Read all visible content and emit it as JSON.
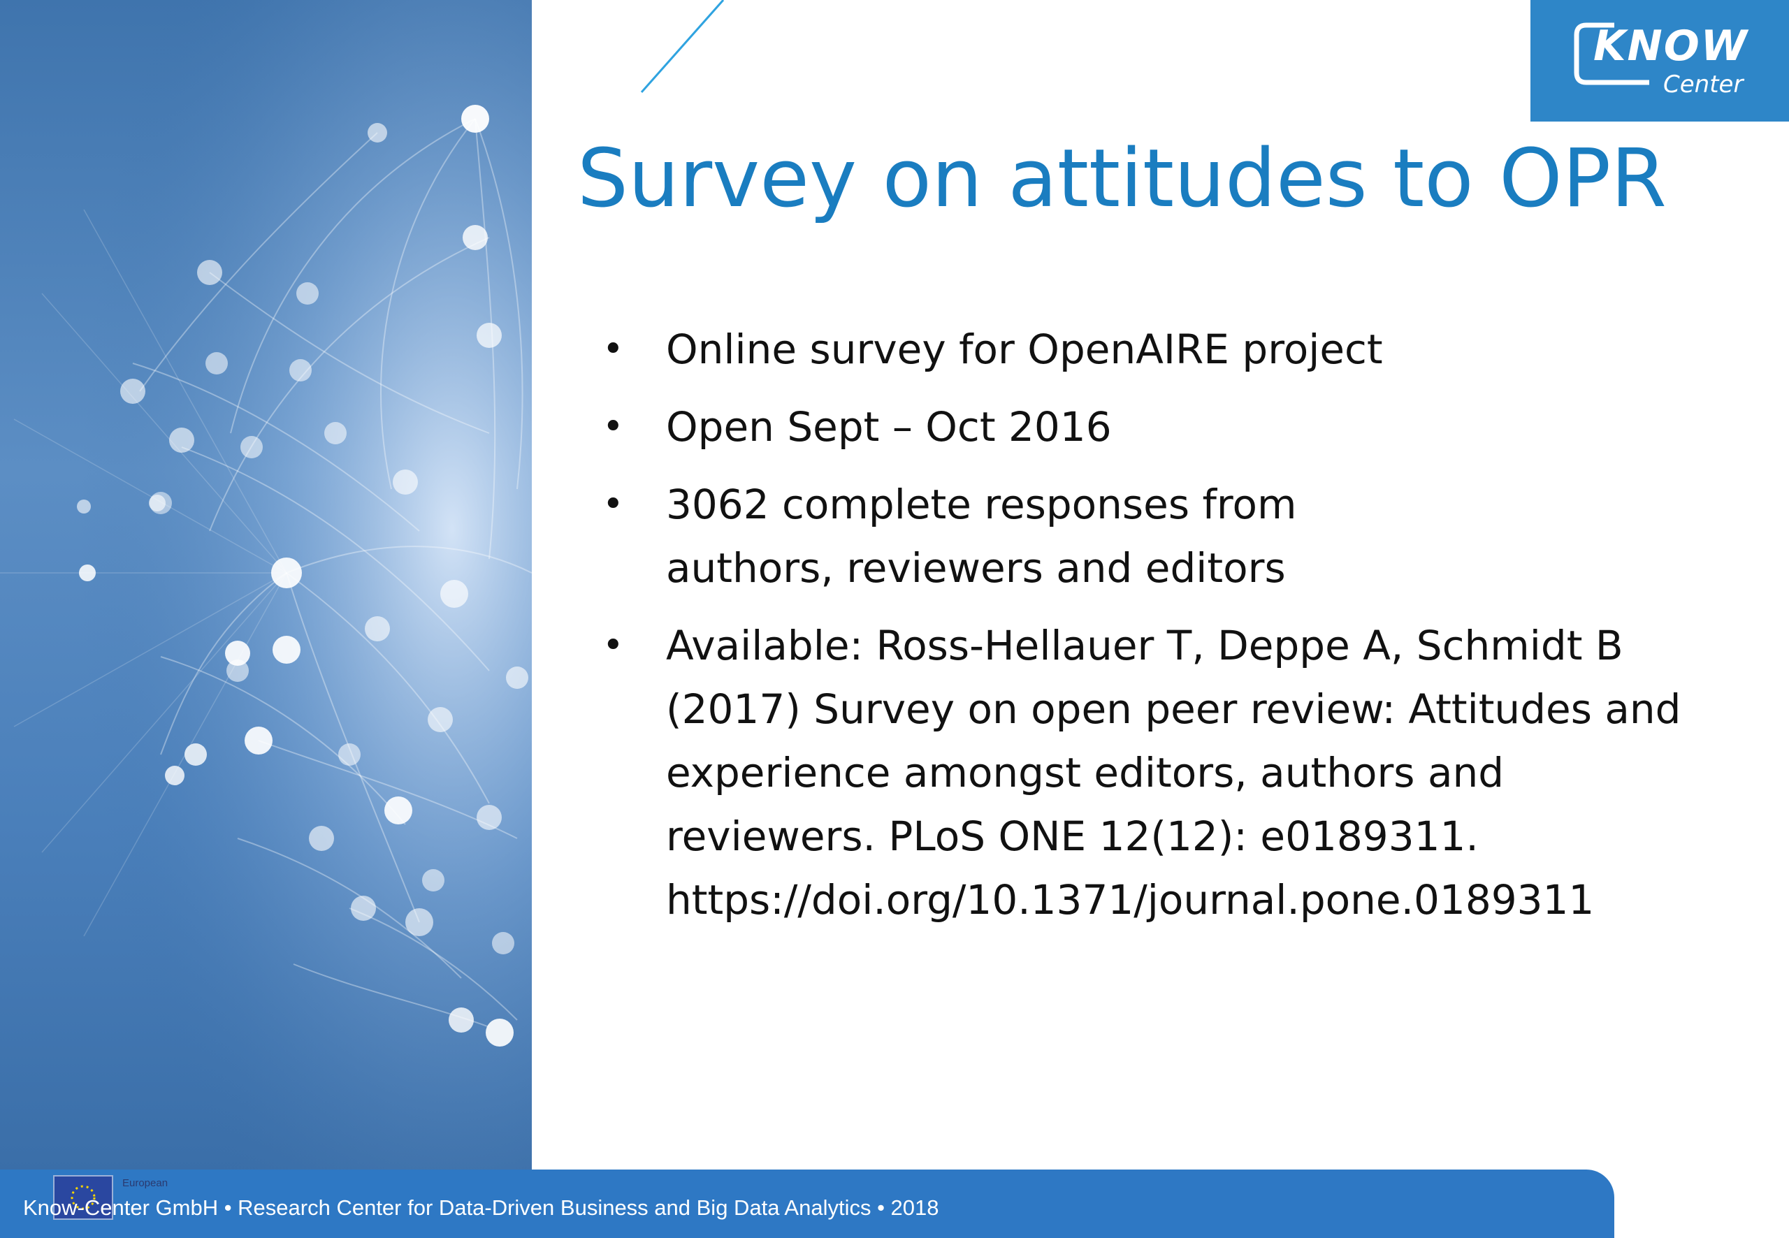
{
  "logo": {
    "word": "KNOW",
    "sub": "Center"
  },
  "slide": {
    "title": "Survey on attitudes to OPR",
    "bullet_marker": "•",
    "bullets": [
      {
        "text": "Online survey for OpenAIRE project"
      },
      {
        "text": "Open Sept – Oct 2016"
      },
      {
        "text": "3062 complete responses from authors, reviewers and editors"
      },
      {
        "text": "Available: Ross-Hellauer T, Deppe A, Schmidt B (2017) Survey on open peer review: Attitudes and experience amongst editors, authors and reviewers. PLoS ONE 12(12): e0189311. https://doi.org/10.1371/journal.pone.0189311"
      }
    ]
  },
  "footer": {
    "eu_label": "European",
    "text": "Know-Center GmbH • Research Center for Data-Driven Business and Big Data Analytics • 2018"
  },
  "colors": {
    "title": "#1a7dc0",
    "footer_bar": "#2e78c4",
    "logo_bg": "#2e86c8",
    "panel": "#4a7fba"
  },
  "icons": {
    "network_graphic": "network-globe-icon",
    "logo_mark": "know-center-logo-icon",
    "eu_flag": "eu-flag-icon"
  }
}
